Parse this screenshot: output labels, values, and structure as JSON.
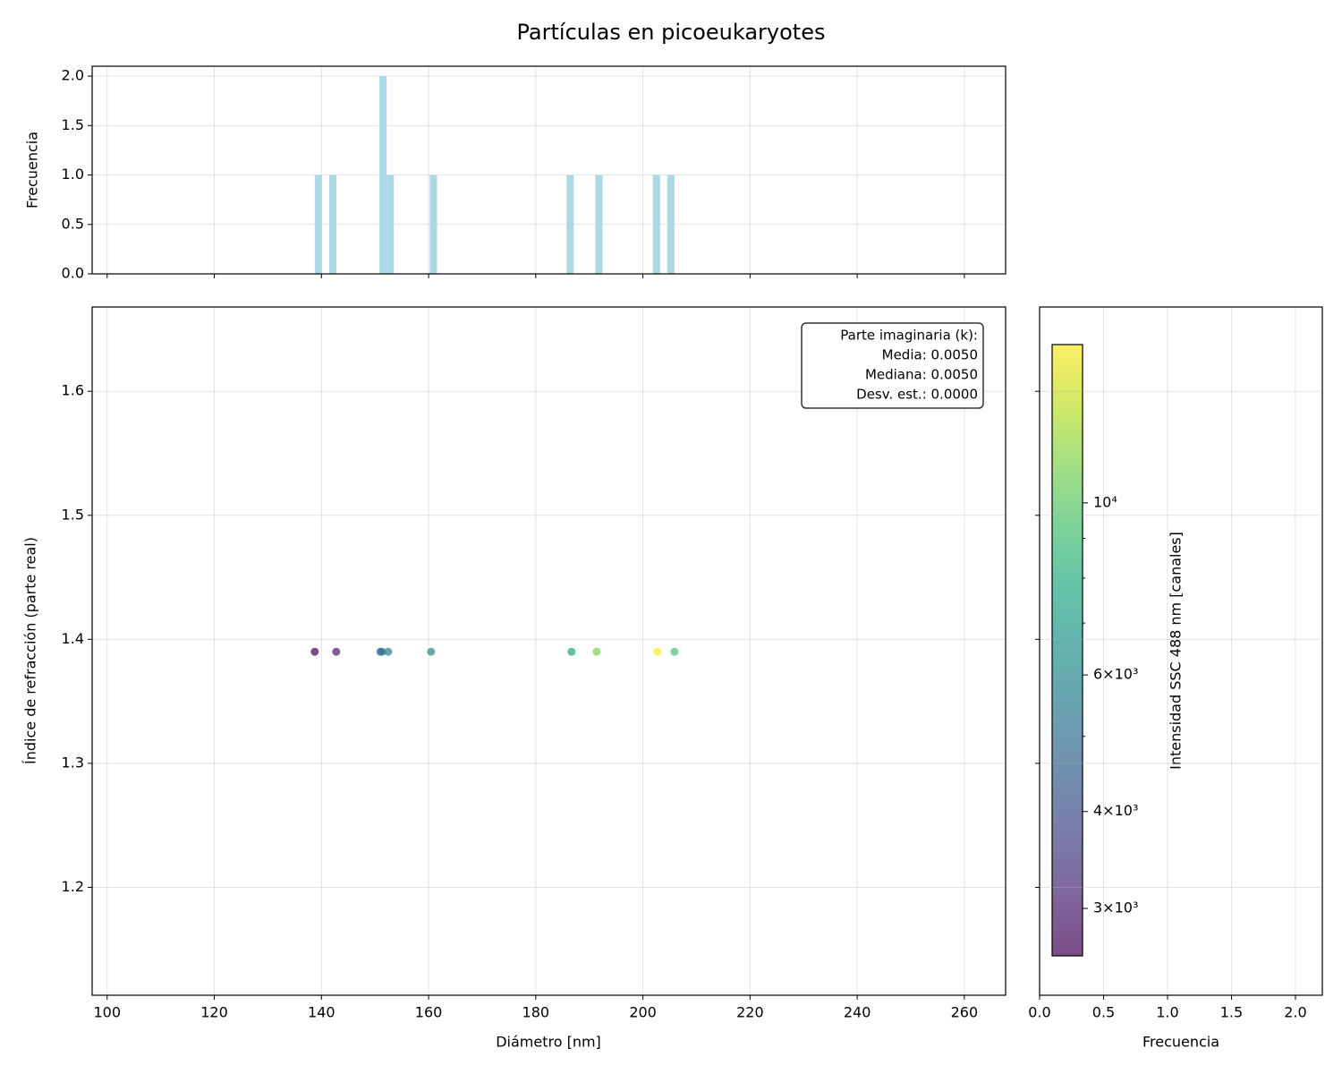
{
  "chart_data": [
    {
      "type": "histogram",
      "title": "Partículas en picoeukaryotes",
      "ylabel": "Frecuencia",
      "color": "#add8e6",
      "bins": [
        138.75,
        140.09,
        141.44,
        142.78,
        144.12,
        145.46,
        146.81,
        148.15,
        149.49,
        150.84,
        152.18,
        153.52,
        154.86,
        156.21,
        157.55,
        158.89,
        160.23,
        161.58,
        162.92,
        164.26,
        165.61,
        166.95,
        168.29,
        169.63,
        170.98,
        172.32,
        173.66,
        175.01,
        176.35,
        177.69,
        179.03,
        180.38,
        181.72,
        183.06,
        184.41,
        185.75,
        187.09,
        188.43,
        189.78,
        191.12,
        192.46,
        193.8,
        195.15,
        196.49,
        197.83,
        199.18,
        200.52,
        201.86,
        203.2,
        204.55,
        205.89
      ],
      "counts": [
        1,
        0,
        1,
        0,
        0,
        0,
        0,
        0,
        0,
        2,
        1,
        0,
        0,
        0,
        0,
        0,
        1,
        0,
        0,
        0,
        0,
        0,
        0,
        0,
        0,
        0,
        0,
        0,
        0,
        0,
        0,
        0,
        0,
        0,
        0,
        1,
        0,
        0,
        0,
        1,
        0,
        0,
        0,
        0,
        0,
        0,
        0,
        1,
        0,
        1
      ],
      "xlim": [
        97.2,
        267.7
      ],
      "ylim": [
        0,
        2.1
      ],
      "xticks": [
        100,
        120,
        140,
        160,
        180,
        200,
        220,
        240,
        260
      ],
      "yticks": [
        {
          "value": 0,
          "label": "0.0"
        },
        {
          "value": 0.5,
          "label": "0.5"
        },
        {
          "value": 1,
          "label": "1.0"
        },
        {
          "value": 1.5,
          "label": "1.5"
        },
        {
          "value": 2,
          "label": "2.0"
        }
      ],
      "grid": true
    },
    {
      "type": "scatter",
      "xlabel": "Diámetro [nm]",
      "ylabel": "Índice de refracción (parte real)",
      "series": [
        {
          "x": [
            138.75,
            142.76,
            151.0,
            151.3,
            152.44,
            160.46,
            186.68,
            191.36,
            202.71,
            205.89
          ],
          "y": [
            1.39,
            1.39,
            1.39,
            1.39,
            1.39,
            1.39,
            1.39,
            1.39,
            1.39,
            1.39
          ],
          "c": [
            2650,
            3000,
            5000,
            5000,
            5500,
            6000,
            7500,
            11000,
            16000,
            9500
          ]
        }
      ],
      "colormap": "viridis",
      "alpha": 0.7,
      "xlim": [
        97.2,
        267.7
      ],
      "ylim": [
        1.113,
        1.668
      ],
      "xticks": [
        100,
        120,
        140,
        160,
        180,
        200,
        220,
        240,
        260
      ],
      "yticks": [
        1.2,
        1.3,
        1.4,
        1.5,
        1.6
      ],
      "grid": true,
      "annotation": [
        "Parte imaginaria (k):",
        "Media: 0.0050",
        "Mediana: 0.0050",
        "Desv. est.: 0.0000"
      ],
      "colorbar": {
        "label": "Intensidad SSC 488 nm [canales]",
        "scale": "log",
        "lim": [
          2606,
          16000
        ],
        "ticks": [
          {
            "value": 3000,
            "label": "3×10³"
          },
          {
            "value": 4000,
            "label": "4×10³"
          },
          {
            "value": 6000,
            "label": "6×10³"
          },
          {
            "value": 10000,
            "label": "10⁴"
          }
        ],
        "minor_ticks": [
          5000,
          7000,
          8000,
          9000
        ]
      }
    },
    {
      "type": "histogram",
      "xlabel": "Frecuencia",
      "orientation": "horizontal",
      "xlim": [
        0,
        2.21
      ],
      "ylim": [
        1.113,
        1.668
      ],
      "xticks": [
        {
          "value": 0,
          "label": "0.0"
        },
        {
          "value": 0.5,
          "label": "0.5"
        },
        {
          "value": 1,
          "label": "1.0"
        },
        {
          "value": 1.5,
          "label": "1.5"
        },
        {
          "value": 2,
          "label": "2.0"
        }
      ],
      "yticks": [
        1.2,
        1.3,
        1.4,
        1.5,
        1.6
      ],
      "grid": true
    }
  ]
}
